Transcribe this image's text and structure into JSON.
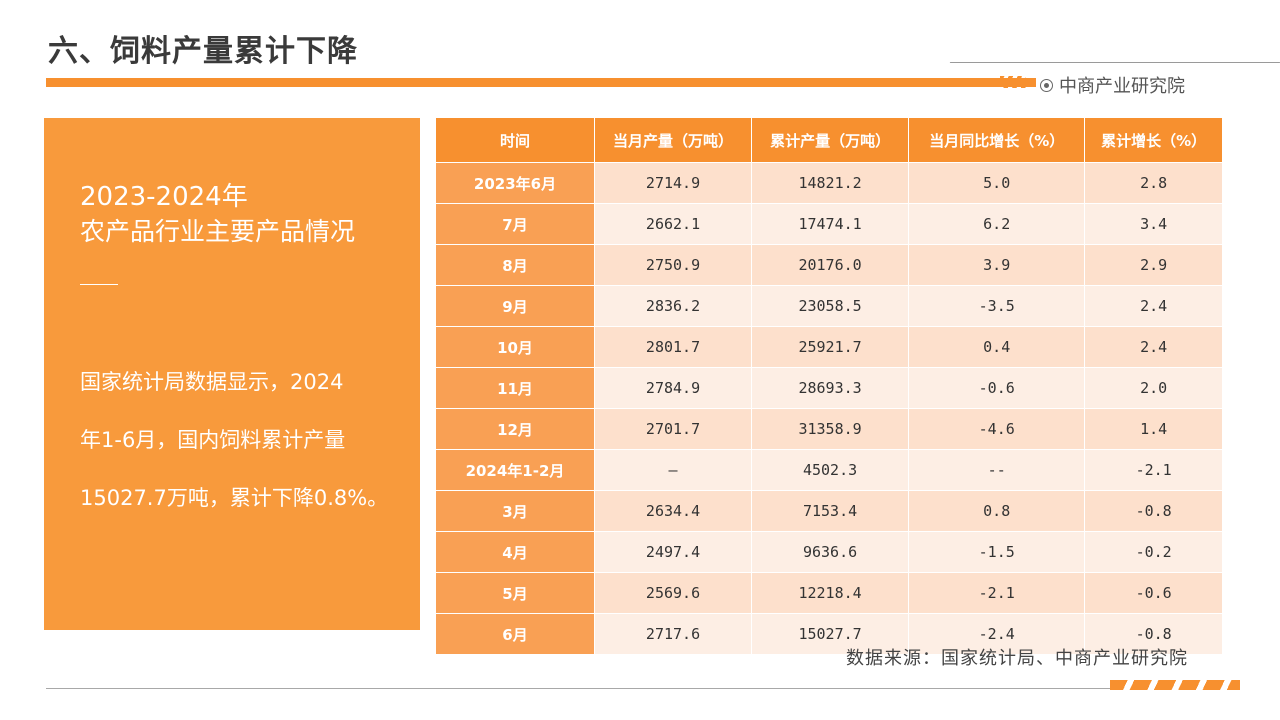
{
  "page": {
    "title": "六、饲料产量累计下降",
    "brand": "中商产业研究院",
    "source": "数据来源：国家统计局、中商产业研究院"
  },
  "panel": {
    "years": "2023-2024年",
    "subtitle": "农产品行业主要产品情况",
    "text_lines": [
      "国家统计局数据显示，2024",
      "年1-6月，国内饲料累计产量",
      "15027.7万吨，累计下降0.8%。"
    ]
  },
  "table": {
    "headers": [
      "时间",
      "当月产量（万吨）",
      "累计产量（万吨）",
      "当月同比增长（%）",
      "累计增长（%）"
    ],
    "rows": [
      [
        "2023年6月",
        "2714.9",
        "14821.2",
        "5.0",
        "2.8"
      ],
      [
        "7月",
        "2662.1",
        "17474.1",
        "6.2",
        "3.4"
      ],
      [
        "8月",
        "2750.9",
        "20176.0",
        "3.9",
        "2.9"
      ],
      [
        "9月",
        "2836.2",
        "23058.5",
        "-3.5",
        "2.4"
      ],
      [
        "10月",
        "2801.7",
        "25921.7",
        "0.4",
        "2.4"
      ],
      [
        "11月",
        "2784.9",
        "28693.3",
        "-0.6",
        "2.0"
      ],
      [
        "12月",
        "2701.7",
        "31358.9",
        "-4.6",
        "1.4"
      ],
      [
        "2024年1-2月",
        "—",
        "4502.3",
        "--",
        "-2.1"
      ],
      [
        "3月",
        "2634.4",
        "7153.4",
        "0.8",
        "-0.8"
      ],
      [
        "4月",
        "2497.4",
        "9636.6",
        "-1.5",
        "-0.2"
      ],
      [
        "5月",
        "2569.6",
        "12218.4",
        "-2.1",
        "-0.6"
      ],
      [
        "6月",
        "2717.6",
        "15027.7",
        "-2.4",
        "-0.8"
      ]
    ]
  },
  "colors": {
    "accent": "#f7902f",
    "panel": "#f89a3c",
    "row_odd": "#fde0cc",
    "row_even": "#fdeee4"
  }
}
